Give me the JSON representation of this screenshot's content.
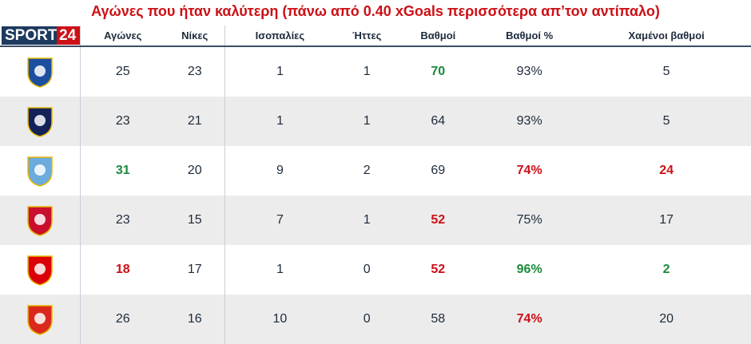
{
  "title": "Αγώνες που ήταν καλύτερη (πάνω από 0.40 xGoals περισσότερα απ’τον αντίπαλο)",
  "logo": {
    "part1": "SPORT",
    "part2": "24"
  },
  "headers": [
    "Αγώνες",
    "Νίκες",
    "Ισοπαλίες",
    "Ήττες",
    "Βαθμοί",
    "Βαθμοί %",
    "Χαμένοι βαθμοί"
  ],
  "rows": [
    {
      "team_crest": "chelsea-crest",
      "cells": [
        "25",
        "23",
        "1",
        "1",
        "70",
        "93%",
        "5"
      ],
      "highlight": [
        "",
        "",
        "",
        "",
        "green",
        "",
        ""
      ]
    },
    {
      "team_crest": "tottenham-crest",
      "cells": [
        "23",
        "21",
        "1",
        "1",
        "64",
        "93%",
        "5"
      ],
      "highlight": [
        "",
        "",
        "",
        "",
        "",
        "",
        ""
      ]
    },
    {
      "team_crest": "manchester-city-crest",
      "cells": [
        "31",
        "20",
        "9",
        "2",
        "69",
        "74%",
        "24"
      ],
      "highlight": [
        "green",
        "",
        "",
        "",
        "",
        "red",
        "red"
      ]
    },
    {
      "team_crest": "liverpool-crest",
      "cells": [
        "23",
        "15",
        "7",
        "1",
        "52",
        "75%",
        "17"
      ],
      "highlight": [
        "",
        "",
        "",
        "",
        "red",
        "",
        ""
      ]
    },
    {
      "team_crest": "arsenal-crest",
      "cells": [
        "18",
        "17",
        "1",
        "0",
        "52",
        "96%",
        "2"
      ],
      "highlight": [
        "red",
        "",
        "",
        "",
        "red",
        "green",
        "green"
      ]
    },
    {
      "team_crest": "manchester-united-crest",
      "cells": [
        "26",
        "16",
        "10",
        "0",
        "58",
        "74%",
        "20"
      ],
      "highlight": [
        "",
        "",
        "",
        "",
        "",
        "red",
        ""
      ]
    }
  ],
  "crest_colors": {
    "chelsea-crest": "#1c4fa0",
    "tottenham-crest": "#132257",
    "manchester-city-crest": "#6cabdd",
    "liverpool-crest": "#c8102e",
    "arsenal-crest": "#db0007",
    "manchester-united-crest": "#da291c"
  }
}
